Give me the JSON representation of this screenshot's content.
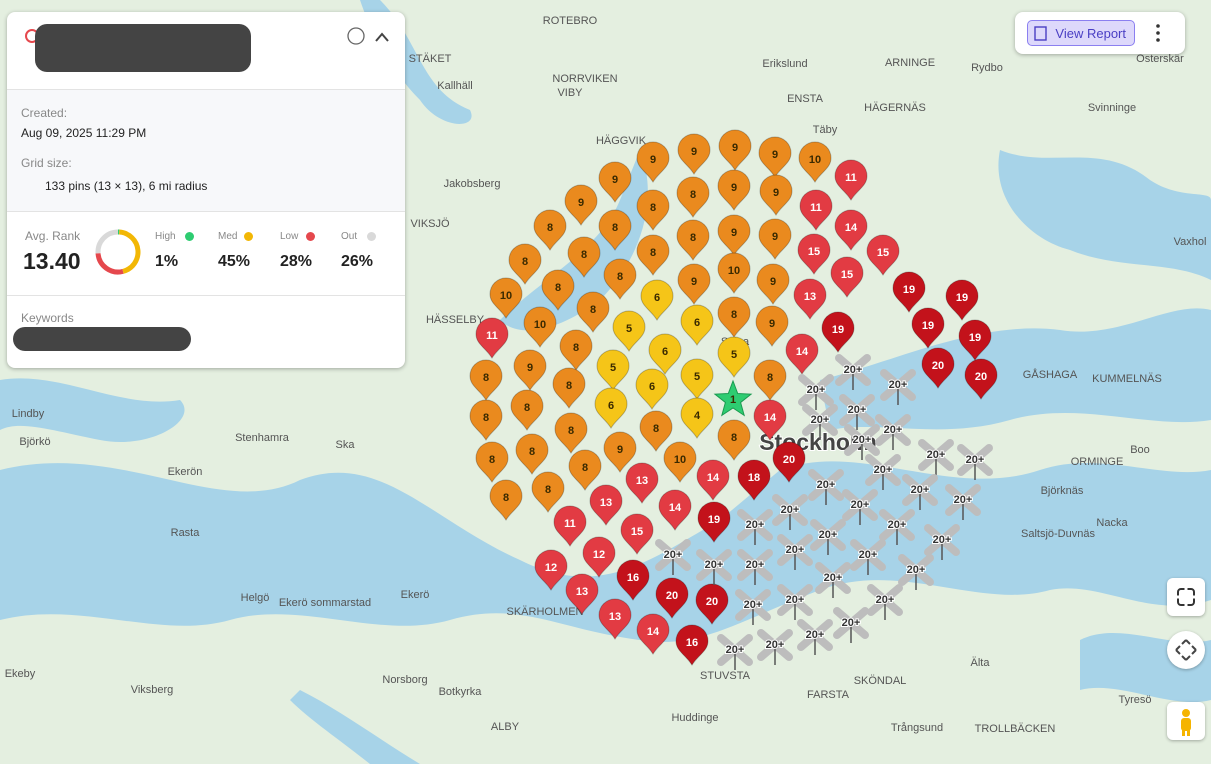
{
  "panel": {
    "created_label": "Created:",
    "created": "Aug 09, 2025 11:29 PM",
    "grid_label": "Grid size:",
    "grid": "133 pins (13 × 13), 6 mi radius",
    "avg_label": "Avg. Rank",
    "avg": "13.40",
    "keywords_label": "Keywords",
    "stats": [
      {
        "name": "High",
        "value": 1,
        "value_label": "1%",
        "color": "#2ecc71"
      },
      {
        "name": "Med",
        "value": 45,
        "value_label": "45%",
        "color": "#f2b705"
      },
      {
        "name": "Low",
        "value": 28,
        "value_label": "28%",
        "color": "#e5484d"
      },
      {
        "name": "Out",
        "value": 26,
        "value_label": "26%",
        "color": "#d9d9d9"
      }
    ]
  },
  "toolbar": {
    "view_report": "View Report"
  },
  "map": {
    "pins": [
      9,
      9,
      9,
      9,
      10,
      11,
      9,
      9,
      8,
      8,
      9,
      9,
      11,
      14,
      8,
      8,
      8,
      8,
      9,
      9,
      15,
      15,
      8,
      8,
      8,
      9,
      10,
      9,
      15,
      19,
      19,
      10,
      8,
      8,
      6,
      6,
      8,
      13,
      9,
      19,
      19,
      19,
      11,
      10,
      5,
      8,
      6,
      5,
      14,
      20,
      20,
      8,
      9,
      5,
      5,
      8,
      6,
      1,
      8,
      8,
      8,
      6,
      4,
      14,
      8,
      8,
      8,
      8,
      8,
      9,
      8,
      10,
      20,
      8,
      8,
      13,
      14,
      18,
      13,
      14,
      11,
      19,
      15,
      12,
      12,
      16,
      13,
      20,
      20,
      13,
      14,
      16,
      "20+",
      "20+",
      "20+",
      "20+",
      "20+",
      "20+",
      "20+",
      "20+",
      "20+",
      "20+",
      "20+",
      "20+",
      "20+",
      "20+",
      "20+",
      "20+",
      "20+",
      "20+",
      "20+",
      "20+",
      "20+",
      "20+",
      "20+",
      "20+",
      "20+",
      "20+",
      "20+",
      "20+",
      "20+",
      "20+",
      "20+",
      "20+",
      "20+"
    ],
    "places": [
      "ROTEBRO",
      "STÄKET",
      "Kallhäll",
      "NORRVIKEN",
      "VIBY",
      "Erikslund",
      "ENSTA",
      "ARNINGE",
      "Rydbo",
      "Österskär",
      "Täby",
      "HÄGERNÄS",
      "Svinninge",
      "Jakobsberg",
      "HÄGGVIK",
      "VIKSJÖ",
      "HÄSSELBY",
      "Lindby",
      "Stenhamra",
      "Ska",
      "Björkö",
      "Ekerön",
      "Rasta",
      "Helgö",
      "Ekerö sommarstad",
      "Ekerö",
      "Norsborg",
      "Botkyrka",
      "Viksberg",
      "Ekeby",
      "Huddinge",
      "STUVSTA",
      "Stockholm",
      "Solna",
      "Nacka",
      "Björknäs",
      "Saltsjö-Duvnäs",
      "ORMINGE",
      "Boo",
      "GÅSHAGA",
      "KUMMELNÄS",
      "Vaxhol",
      "FARSTA",
      "Trångsund",
      "Tyresö",
      "Älta",
      "SKÖNDAL",
      "TROLLBÄCKEN",
      "SKÄRHOLMEN",
      "ALBY"
    ]
  }
}
